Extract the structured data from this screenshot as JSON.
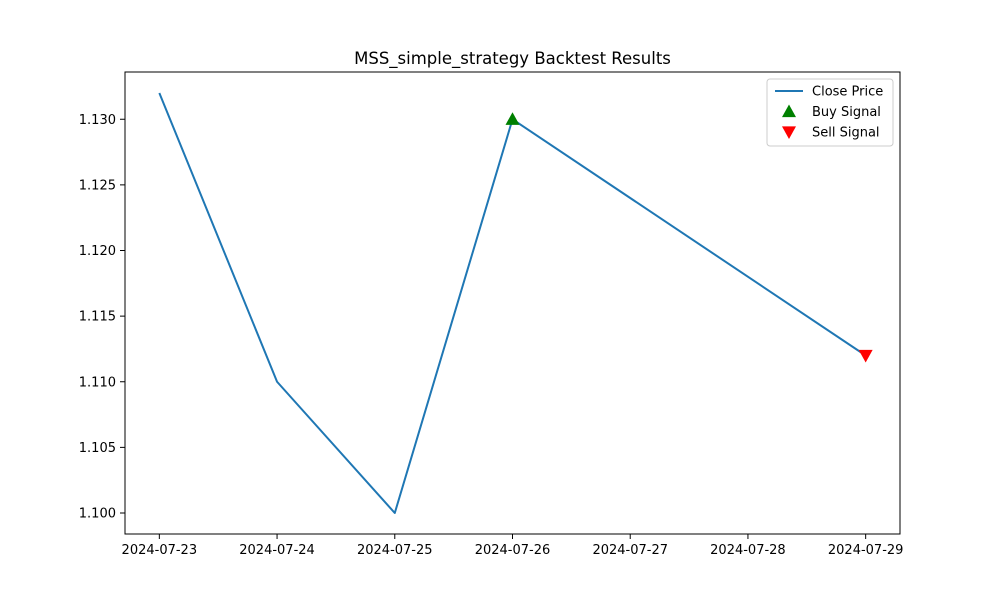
{
  "chart_data": {
    "type": "line",
    "title": "MSS_simple_strategy Backtest Results",
    "xlabel": "",
    "ylabel": "",
    "x": [
      "2024-07-23",
      "2024-07-24",
      "2024-07-25",
      "2024-07-26",
      "2024-07-29"
    ],
    "x_ticks": [
      "2024-07-23",
      "2024-07-24",
      "2024-07-25",
      "2024-07-26",
      "2024-07-27",
      "2024-07-28",
      "2024-07-29"
    ],
    "xlim": [
      "2024-07-22T17:00",
      "2024-07-29T07:00"
    ],
    "ylim": [
      1.0984,
      1.1336
    ],
    "y_ticks": [
      "1.100",
      "1.105",
      "1.110",
      "1.115",
      "1.120",
      "1.125",
      "1.130"
    ],
    "series": [
      {
        "name": "Close Price",
        "type": "line",
        "color": "#1f77b4",
        "x": [
          "2024-07-23",
          "2024-07-24",
          "2024-07-25",
          "2024-07-26",
          "2024-07-29"
        ],
        "values": [
          1.132,
          1.11,
          1.1,
          1.13,
          1.112
        ]
      },
      {
        "name": "Buy Signal",
        "type": "marker",
        "marker": "triangle-up",
        "color": "#008000",
        "x": [
          "2024-07-26"
        ],
        "values": [
          1.13
        ]
      },
      {
        "name": "Sell Signal",
        "type": "marker",
        "marker": "triangle-down",
        "color": "#ff0000",
        "x": [
          "2024-07-29"
        ],
        "values": [
          1.112
        ]
      }
    ],
    "legend": {
      "placement": "upper-right",
      "entries": [
        "Close Price",
        "Buy Signal",
        "Sell Signal"
      ]
    },
    "grid": false
  }
}
